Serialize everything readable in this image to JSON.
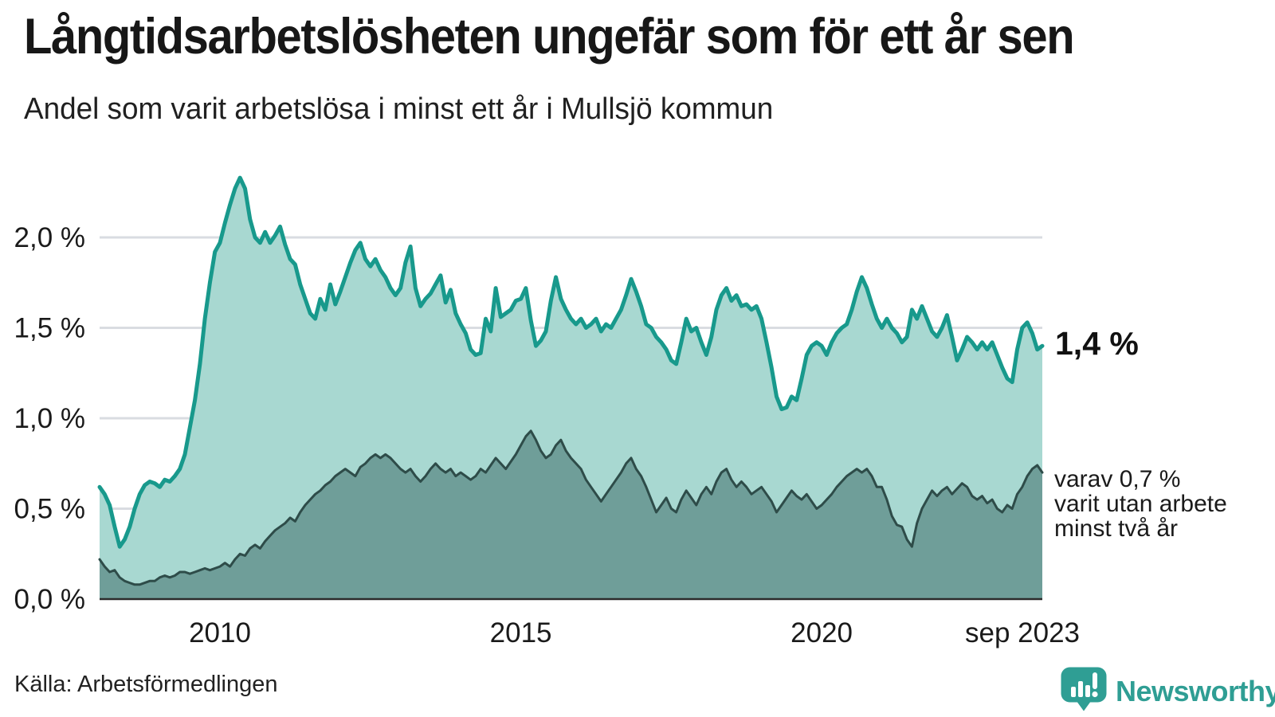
{
  "header": {
    "title": "Långtidsarbetslösheten ungefär som för ett år sen",
    "subtitle": "Andel som varit arbetslösa i minst ett år i Mullsjö kommun"
  },
  "chart_data": {
    "type": "area",
    "title": "Andel som varit arbetslösa i minst ett år i Mullsjö kommun",
    "x_start": "jan 2008",
    "x_end": "sep 2023",
    "x_frequency": "monthly",
    "ylim": [
      0,
      2.45
    ],
    "grid": true,
    "grid_color": "#d9dce1",
    "baseline_color": "#2b2b2b",
    "y_ticks": [
      {
        "value": 0.0,
        "label": "0,0 %"
      },
      {
        "value": 0.5,
        "label": "0,5 %"
      },
      {
        "value": 1.0,
        "label": "1,0 %"
      },
      {
        "value": 1.5,
        "label": "1,5 %"
      },
      {
        "value": 2.0,
        "label": "2,0 %"
      }
    ],
    "x_ticks": [
      {
        "label": "2010",
        "month_index": 24
      },
      {
        "label": "2015",
        "month_index": 84
      },
      {
        "label": "2020",
        "month_index": 144
      },
      {
        "label": "sep 2023",
        "month_index": 188
      }
    ],
    "series": [
      {
        "name": "Arbetslösa minst ett år",
        "end_label": "1,4 %",
        "line_color": "#18998c",
        "fill_color": "#a8d8d1",
        "line_width": 5,
        "values": [
          0.62,
          0.58,
          0.52,
          0.4,
          0.29,
          0.33,
          0.4,
          0.5,
          0.58,
          0.63,
          0.65,
          0.64,
          0.62,
          0.66,
          0.65,
          0.68,
          0.72,
          0.8,
          0.95,
          1.1,
          1.3,
          1.55,
          1.75,
          1.92,
          1.97,
          2.08,
          2.18,
          2.27,
          2.33,
          2.27,
          2.1,
          2.0,
          1.97,
          2.03,
          1.97,
          2.01,
          2.06,
          1.96,
          1.88,
          1.85,
          1.74,
          1.66,
          1.58,
          1.55,
          1.66,
          1.6,
          1.74,
          1.63,
          1.7,
          1.78,
          1.86,
          1.93,
          1.97,
          1.88,
          1.84,
          1.88,
          1.82,
          1.78,
          1.72,
          1.68,
          1.72,
          1.86,
          1.95,
          1.72,
          1.62,
          1.66,
          1.69,
          1.74,
          1.79,
          1.64,
          1.71,
          1.58,
          1.52,
          1.47,
          1.38,
          1.35,
          1.36,
          1.55,
          1.48,
          1.72,
          1.56,
          1.58,
          1.6,
          1.65,
          1.66,
          1.72,
          1.54,
          1.4,
          1.43,
          1.48,
          1.65,
          1.78,
          1.66,
          1.6,
          1.55,
          1.52,
          1.55,
          1.5,
          1.52,
          1.55,
          1.48,
          1.52,
          1.5,
          1.55,
          1.6,
          1.68,
          1.77,
          1.7,
          1.62,
          1.52,
          1.5,
          1.45,
          1.42,
          1.38,
          1.32,
          1.3,
          1.42,
          1.55,
          1.48,
          1.5,
          1.42,
          1.35,
          1.45,
          1.6,
          1.68,
          1.72,
          1.65,
          1.68,
          1.62,
          1.63,
          1.6,
          1.62,
          1.55,
          1.42,
          1.28,
          1.12,
          1.05,
          1.06,
          1.12,
          1.1,
          1.22,
          1.35,
          1.4,
          1.42,
          1.4,
          1.35,
          1.42,
          1.47,
          1.5,
          1.52,
          1.6,
          1.7,
          1.78,
          1.72,
          1.63,
          1.55,
          1.5,
          1.55,
          1.5,
          1.47,
          1.42,
          1.45,
          1.6,
          1.55,
          1.62,
          1.55,
          1.48,
          1.45,
          1.5,
          1.57,
          1.45,
          1.32,
          1.38,
          1.45,
          1.42,
          1.38,
          1.42,
          1.38,
          1.42,
          1.35,
          1.28,
          1.22,
          1.2,
          1.38,
          1.5,
          1.53,
          1.47,
          1.38,
          1.4
        ]
      },
      {
        "name": "varav utan arbete minst två år",
        "end_label": "varav 0,7 % varit utan arbete minst två år",
        "line_color": "#2e4c49",
        "fill_color": "#6f9e99",
        "line_width": 3,
        "values": [
          0.22,
          0.18,
          0.15,
          0.16,
          0.12,
          0.1,
          0.09,
          0.08,
          0.08,
          0.09,
          0.1,
          0.1,
          0.12,
          0.13,
          0.12,
          0.13,
          0.15,
          0.15,
          0.14,
          0.15,
          0.16,
          0.17,
          0.16,
          0.17,
          0.18,
          0.2,
          0.18,
          0.22,
          0.25,
          0.24,
          0.28,
          0.3,
          0.28,
          0.32,
          0.35,
          0.38,
          0.4,
          0.42,
          0.45,
          0.43,
          0.48,
          0.52,
          0.55,
          0.58,
          0.6,
          0.63,
          0.65,
          0.68,
          0.7,
          0.72,
          0.7,
          0.68,
          0.73,
          0.75,
          0.78,
          0.8,
          0.78,
          0.8,
          0.78,
          0.75,
          0.72,
          0.7,
          0.72,
          0.68,
          0.65,
          0.68,
          0.72,
          0.75,
          0.72,
          0.7,
          0.72,
          0.68,
          0.7,
          0.68,
          0.66,
          0.68,
          0.72,
          0.7,
          0.74,
          0.78,
          0.75,
          0.72,
          0.76,
          0.8,
          0.85,
          0.9,
          0.93,
          0.88,
          0.82,
          0.78,
          0.8,
          0.85,
          0.88,
          0.82,
          0.78,
          0.75,
          0.72,
          0.66,
          0.62,
          0.58,
          0.54,
          0.58,
          0.62,
          0.66,
          0.7,
          0.75,
          0.78,
          0.72,
          0.68,
          0.62,
          0.55,
          0.48,
          0.52,
          0.56,
          0.5,
          0.48,
          0.55,
          0.6,
          0.56,
          0.52,
          0.58,
          0.62,
          0.58,
          0.65,
          0.7,
          0.72,
          0.66,
          0.62,
          0.65,
          0.62,
          0.58,
          0.6,
          0.62,
          0.58,
          0.54,
          0.48,
          0.52,
          0.56,
          0.6,
          0.57,
          0.55,
          0.58,
          0.54,
          0.5,
          0.52,
          0.55,
          0.58,
          0.62,
          0.65,
          0.68,
          0.7,
          0.72,
          0.7,
          0.72,
          0.68,
          0.62,
          0.62,
          0.55,
          0.46,
          0.41,
          0.4,
          0.33,
          0.29,
          0.42,
          0.5,
          0.55,
          0.6,
          0.57,
          0.6,
          0.62,
          0.58,
          0.61,
          0.64,
          0.62,
          0.57,
          0.55,
          0.57,
          0.53,
          0.55,
          0.5,
          0.48,
          0.52,
          0.5,
          0.58,
          0.62,
          0.68,
          0.72,
          0.74,
          0.7
        ]
      }
    ]
  },
  "annotations": {
    "end_value_main": "1,4 %",
    "end_note_lines": [
      "varav 0,7 %",
      "varit utan arbete",
      "minst två år"
    ]
  },
  "footer": {
    "source": "Källa: Arbetsförmedlingen",
    "brand": "Newsworthy"
  },
  "colors": {
    "accent_teal": "#18998c",
    "light_fill": "#a8d8d1",
    "dark_fill": "#6f9e99",
    "dark_line": "#2e4c49",
    "brand_teal": "#2f9e94",
    "grid": "#d9dce1"
  }
}
